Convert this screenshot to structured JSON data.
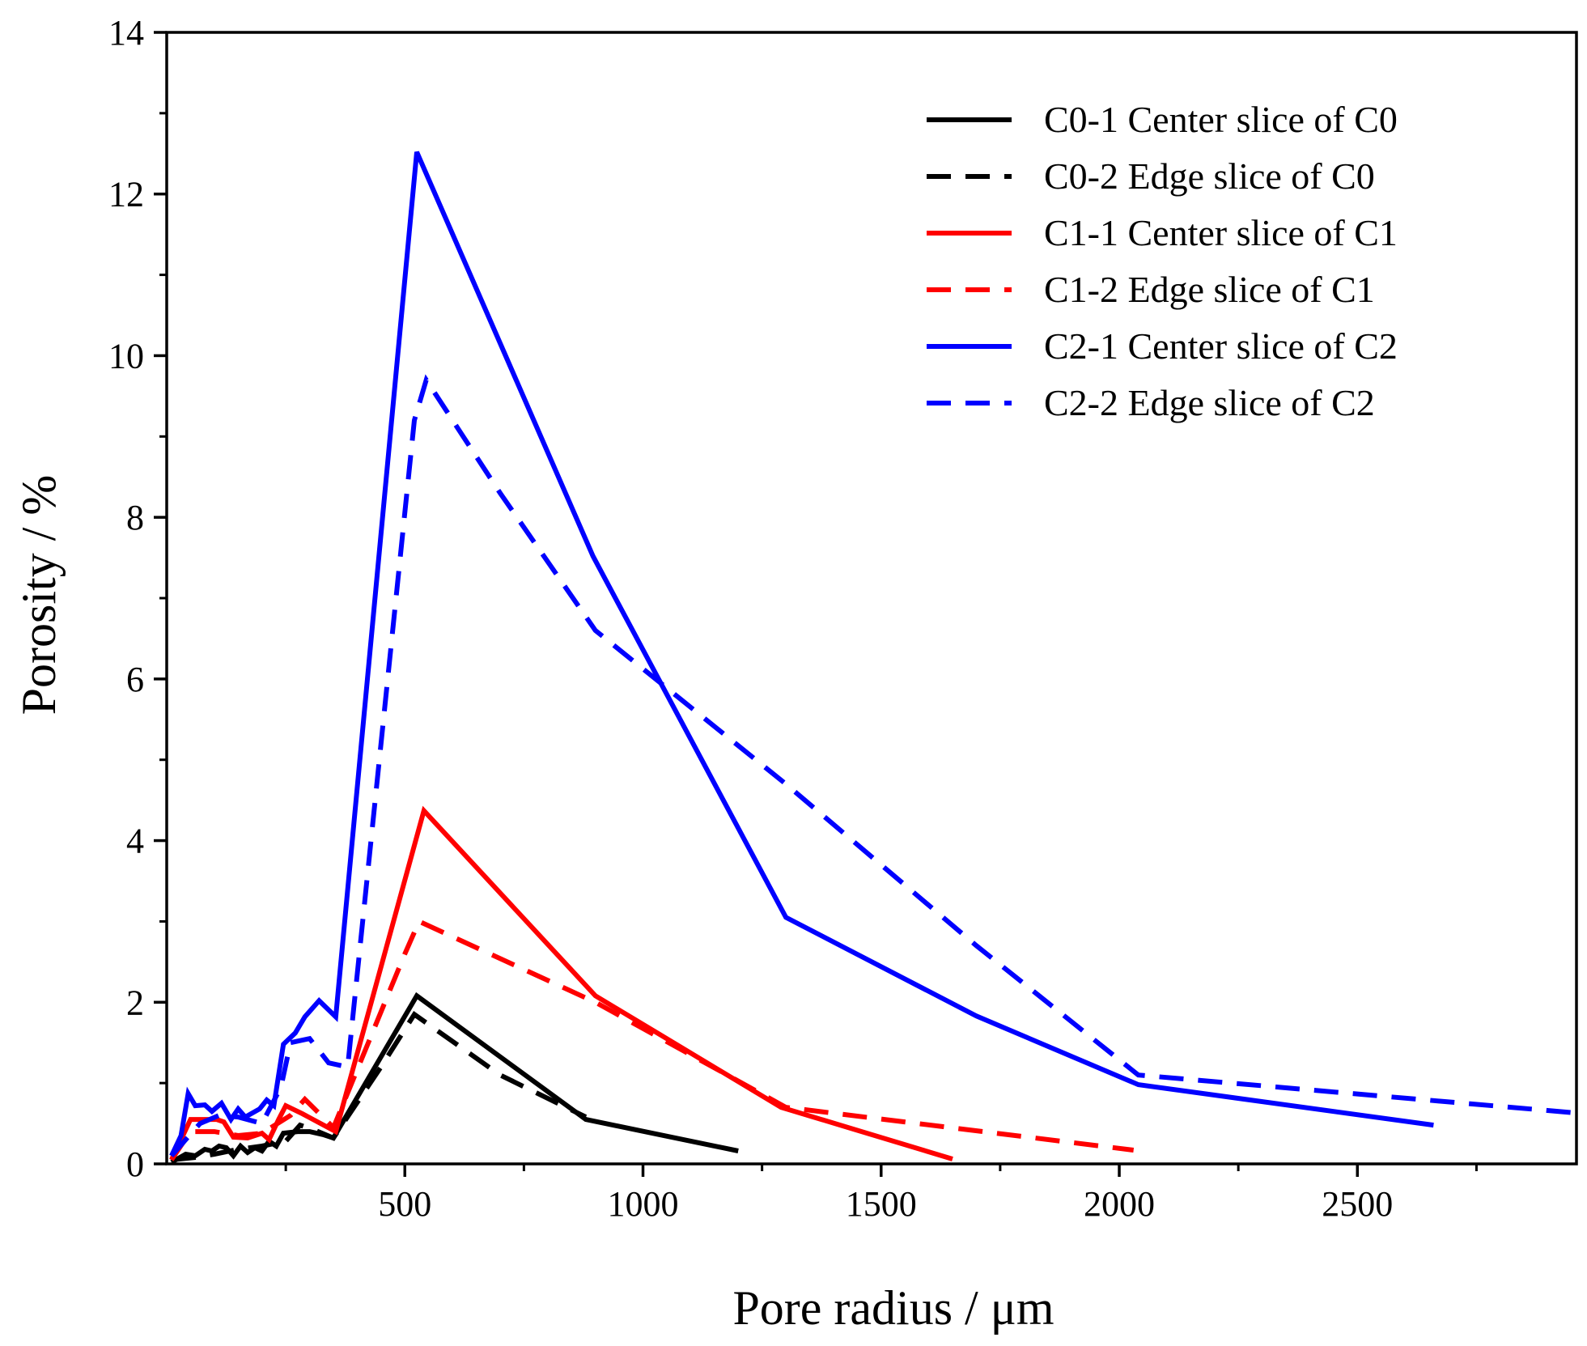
{
  "chart_data": {
    "type": "line",
    "title": "",
    "xlabel": "Pore radius / μm",
    "ylabel": "Porosity / %",
    "xlim": [
      0,
      2960
    ],
    "ylim": [
      0,
      14
    ],
    "x_ticks": [
      500,
      1000,
      1500,
      2000,
      2500
    ],
    "x_minor_ticks": [
      250,
      750,
      1250,
      1750,
      2250,
      2750
    ],
    "y_ticks": [
      0,
      2,
      4,
      6,
      8,
      10,
      12,
      14
    ],
    "y_minor_ticks": [
      1,
      3,
      5,
      7,
      9,
      11,
      13
    ],
    "grid": false,
    "legend_position": "top-right",
    "series": [
      {
        "name": "C0-1 Center slice of C0",
        "color": "#000000",
        "dash": "solid",
        "points": [
          [
            10,
            0.02
          ],
          [
            40,
            0.12
          ],
          [
            60,
            0.1
          ],
          [
            80,
            0.18
          ],
          [
            95,
            0.16
          ],
          [
            110,
            0.22
          ],
          [
            125,
            0.2
          ],
          [
            140,
            0.1
          ],
          [
            155,
            0.22
          ],
          [
            170,
            0.14
          ],
          [
            185,
            0.2
          ],
          [
            200,
            0.16
          ],
          [
            215,
            0.28
          ],
          [
            230,
            0.22
          ],
          [
            245,
            0.38
          ],
          [
            275,
            0.4
          ],
          [
            300,
            0.4
          ],
          [
            330,
            0.36
          ],
          [
            350,
            0.32
          ],
          [
            525,
            2.08
          ],
          [
            880,
            0.55
          ],
          [
            1200,
            0.16
          ]
        ]
      },
      {
        "name": "C0-2 Edge slice of C0",
        "color": "#000000",
        "dash": "dashed",
        "points": [
          [
            10,
            0.05
          ],
          [
            60,
            0.08
          ],
          [
            100,
            0.12
          ],
          [
            150,
            0.18
          ],
          [
            200,
            0.22
          ],
          [
            250,
            0.28
          ],
          [
            280,
            0.48
          ],
          [
            310,
            0.42
          ],
          [
            350,
            0.32
          ],
          [
            450,
            1.2
          ],
          [
            520,
            1.85
          ],
          [
            700,
            1.1
          ],
          [
            880,
            0.58
          ]
        ]
      },
      {
        "name": "C1-1 Center slice of C1",
        "color": "#ff0000",
        "dash": "solid",
        "points": [
          [
            10,
            0.05
          ],
          [
            30,
            0.3
          ],
          [
            50,
            0.55
          ],
          [
            80,
            0.55
          ],
          [
            105,
            0.55
          ],
          [
            120,
            0.52
          ],
          [
            140,
            0.33
          ],
          [
            170,
            0.32
          ],
          [
            200,
            0.38
          ],
          [
            215,
            0.3
          ],
          [
            235,
            0.55
          ],
          [
            250,
            0.72
          ],
          [
            285,
            0.62
          ],
          [
            355,
            0.4
          ],
          [
            540,
            4.37
          ],
          [
            900,
            2.08
          ],
          [
            1290,
            0.7
          ],
          [
            1650,
            0.06
          ]
        ]
      },
      {
        "name": "C1-2 Edge slice of C1",
        "color": "#ff0000",
        "dash": "dashed",
        "points": [
          [
            10,
            0.05
          ],
          [
            50,
            0.4
          ],
          [
            100,
            0.4
          ],
          [
            150,
            0.35
          ],
          [
            200,
            0.38
          ],
          [
            260,
            0.6
          ],
          [
            290,
            0.8
          ],
          [
            350,
            0.45
          ],
          [
            500,
            2.6
          ],
          [
            530,
            3.0
          ],
          [
            900,
            2.0
          ],
          [
            1300,
            0.7
          ],
          [
            2030,
            0.17
          ]
        ]
      },
      {
        "name": "C2-1 Center slice of C2",
        "color": "#0000ff",
        "dash": "solid",
        "points": [
          [
            10,
            0.1
          ],
          [
            30,
            0.35
          ],
          [
            45,
            0.87
          ],
          [
            60,
            0.72
          ],
          [
            80,
            0.73
          ],
          [
            95,
            0.65
          ],
          [
            115,
            0.75
          ],
          [
            135,
            0.55
          ],
          [
            150,
            0.68
          ],
          [
            165,
            0.58
          ],
          [
            195,
            0.68
          ],
          [
            210,
            0.79
          ],
          [
            225,
            0.72
          ],
          [
            245,
            1.48
          ],
          [
            270,
            1.62
          ],
          [
            290,
            1.82
          ],
          [
            320,
            2.02
          ],
          [
            355,
            1.82
          ],
          [
            525,
            12.52
          ],
          [
            895,
            7.52
          ],
          [
            1300,
            3.05
          ],
          [
            1700,
            1.83
          ],
          [
            2040,
            0.98
          ],
          [
            2660,
            0.48
          ]
        ]
      },
      {
        "name": "C2-2 Edge slice of C2",
        "color": "#0000ff",
        "dash": "dashed",
        "points": [
          [
            10,
            0.1
          ],
          [
            40,
            0.3
          ],
          [
            70,
            0.5
          ],
          [
            110,
            0.6
          ],
          [
            150,
            0.58
          ],
          [
            200,
            0.5
          ],
          [
            240,
            0.95
          ],
          [
            260,
            1.5
          ],
          [
            300,
            1.55
          ],
          [
            340,
            1.25
          ],
          [
            380,
            1.2
          ],
          [
            520,
            9.2
          ],
          [
            545,
            9.7
          ],
          [
            700,
            8.3
          ],
          [
            900,
            6.6
          ],
          [
            1300,
            4.7
          ],
          [
            1700,
            2.7
          ],
          [
            2040,
            1.1
          ],
          [
            2960,
            0.63
          ]
        ]
      }
    ]
  }
}
